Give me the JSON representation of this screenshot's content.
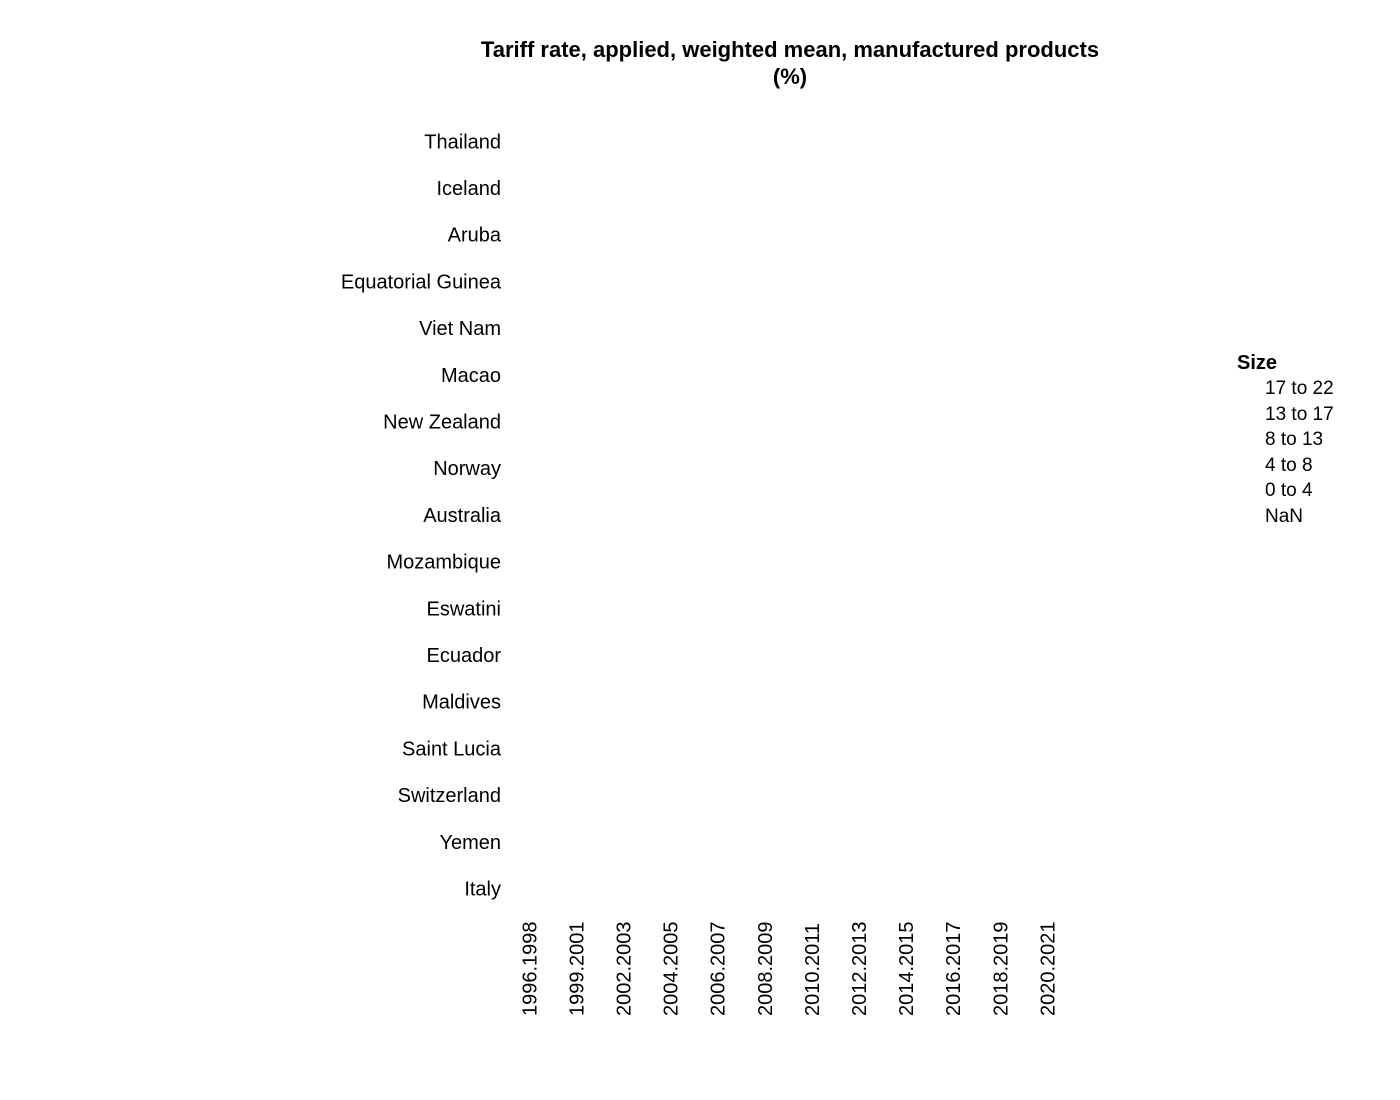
{
  "chart_data": {
    "type": "scatter",
    "title": "Tariff rate, applied, weighted mean, manufactured products (%)",
    "title_lines": [
      "Tariff rate, applied, weighted mean, manufactured products",
      "(%)"
    ],
    "x_categories": [
      "1996.1998",
      "1999.2001",
      "2002.2003",
      "2004.2005",
      "2006.2007",
      "2008.2009",
      "2010.2011",
      "2012.2013",
      "2014.2015",
      "2016.2017",
      "2018.2019",
      "2020.2021"
    ],
    "y_categories": [
      "Thailand",
      "Iceland",
      "Aruba",
      "Equatorial Guinea",
      "Viet Nam",
      "Macao",
      "New Zealand",
      "Norway",
      "Australia",
      "Mozambique",
      "Eswatini",
      "Ecuador",
      "Maldives",
      "Saint Lucia",
      "Switzerland",
      "Yemen",
      "Italy"
    ],
    "points": [],
    "grid": false,
    "legend": {
      "title": "Size",
      "placement": "right",
      "items": [
        "17 to 22",
        "13 to 17",
        "8 to 13",
        "4 to 8",
        "0 to 4",
        "NaN"
      ]
    }
  }
}
